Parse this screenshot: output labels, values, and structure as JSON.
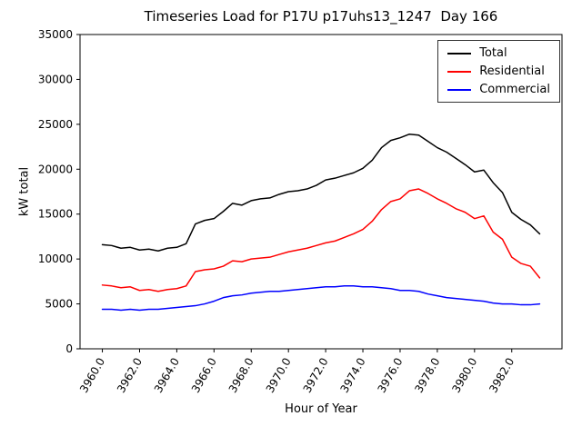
{
  "figure": {
    "title": "Timeseries Load for P17U p17uhs13_1247  Day 166",
    "xlabel": "Hour of Year",
    "ylabel": "kW total"
  },
  "chart_data": {
    "type": "line",
    "title": "Timeseries Load for P17U p17uhs13_1247  Day 166",
    "xlabel": "Hour of Year",
    "ylabel": "kW total",
    "xlim": [
      3958.8,
      3984.7
    ],
    "ylim": [
      0,
      35000
    ],
    "grid": false,
    "legend_position": "upper right",
    "xticks": [
      3960,
      3962,
      3964,
      3966,
      3968,
      3970,
      3972,
      3974,
      3976,
      3978,
      3980,
      3982
    ],
    "xtick_labels": [
      "3960.0",
      "3962.0",
      "3964.0",
      "3966.0",
      "3968.0",
      "3970.0",
      "3972.0",
      "3974.0",
      "3976.0",
      "3978.0",
      "3980.0",
      "3982.0"
    ],
    "yticks": [
      0,
      5000,
      10000,
      15000,
      20000,
      25000,
      30000,
      35000
    ],
    "x": [
      3960.0,
      3960.5,
      3961.0,
      3961.5,
      3962.0,
      3962.5,
      3963.0,
      3963.5,
      3964.0,
      3964.5,
      3965.0,
      3965.5,
      3966.0,
      3966.5,
      3967.0,
      3967.5,
      3968.0,
      3968.5,
      3969.0,
      3969.5,
      3970.0,
      3970.5,
      3971.0,
      3971.5,
      3972.0,
      3972.5,
      3973.0,
      3973.5,
      3974.0,
      3974.5,
      3975.0,
      3975.5,
      3976.0,
      3976.5,
      3977.0,
      3977.5,
      3978.0,
      3978.5,
      3979.0,
      3979.5,
      3980.0,
      3980.5,
      3981.0,
      3981.5,
      3982.0,
      3982.5,
      3983.0,
      3983.5
    ],
    "series": [
      {
        "name": "Total",
        "color": "#000000",
        "values": [
          11600,
          11500,
          11200,
          11300,
          11000,
          11100,
          10900,
          11200,
          11300,
          11700,
          13900,
          14300,
          14500,
          15300,
          16200,
          16000,
          16500,
          16700,
          16800,
          17200,
          17500,
          17600,
          17800,
          18200,
          18800,
          19000,
          19300,
          19600,
          20100,
          21000,
          22400,
          23200,
          23500,
          23900,
          23800,
          23100,
          22400,
          21900,
          21200,
          20500,
          19700,
          19900,
          18500,
          17400,
          15200,
          14400,
          13800,
          12800
        ]
      },
      {
        "name": "Residential",
        "color": "#ff0000",
        "values": [
          7100,
          7000,
          6800,
          6900,
          6500,
          6600,
          6400,
          6600,
          6700,
          7000,
          8600,
          8800,
          8900,
          9200,
          9800,
          9700,
          10000,
          10100,
          10200,
          10500,
          10800,
          11000,
          11200,
          11500,
          11800,
          12000,
          12400,
          12800,
          13300,
          14200,
          15500,
          16400,
          16700,
          17600,
          17800,
          17300,
          16700,
          16200,
          15600,
          15200,
          14500,
          14800,
          13000,
          12200,
          10200,
          9500,
          9200,
          7900
        ]
      },
      {
        "name": "Commercial",
        "color": "#0000ff",
        "values": [
          4400,
          4400,
          4300,
          4400,
          4300,
          4400,
          4400,
          4500,
          4600,
          4700,
          4800,
          5000,
          5300,
          5700,
          5900,
          6000,
          6200,
          6300,
          6400,
          6400,
          6500,
          6600,
          6700,
          6800,
          6900,
          6900,
          7000,
          7000,
          6900,
          6900,
          6800,
          6700,
          6500,
          6500,
          6400,
          6100,
          5900,
          5700,
          5600,
          5500,
          5400,
          5300,
          5100,
          5000,
          5000,
          4900,
          4900,
          5000
        ]
      }
    ]
  }
}
